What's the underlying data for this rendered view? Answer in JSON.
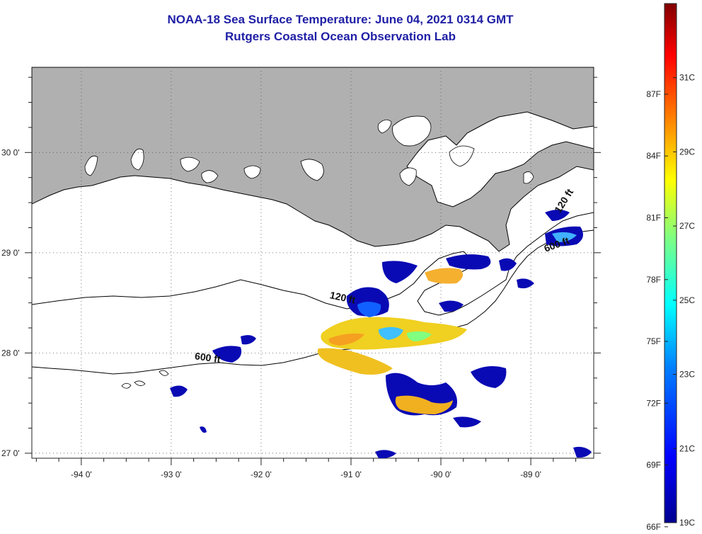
{
  "title": {
    "line1": "NOAA-18 Sea Surface Temperature:  June 04, 2021 0314 GMT",
    "line2": "Rutgers Coastal Ocean Observation Lab"
  },
  "map": {
    "lon_range": [
      -94.55,
      -88.3
    ],
    "lat_range": [
      26.95,
      30.85
    ],
    "lon_ticks": [
      {
        "value": -94,
        "label": "-94 0'"
      },
      {
        "value": -93,
        "label": "-93 0'"
      },
      {
        "value": -92,
        "label": "-92 0'"
      },
      {
        "value": -91,
        "label": "-91 0'"
      },
      {
        "value": -90,
        "label": "-90 0'"
      },
      {
        "value": -89,
        "label": "-89 0'"
      }
    ],
    "lat_ticks": [
      {
        "value": 30,
        "label": "30 0'"
      },
      {
        "value": 29,
        "label": "29 0'"
      },
      {
        "value": 28,
        "label": "28 0'"
      },
      {
        "value": 27,
        "label": "27 0'"
      }
    ],
    "land_color": "#b0b0b0",
    "contours": [
      {
        "label": "120 ft",
        "label_lon": -91.1,
        "label_lat": 28.52,
        "label_angle": 12
      },
      {
        "label": "600 ft",
        "label_lon": -92.6,
        "label_lat": 27.92,
        "label_angle": 8
      },
      {
        "label": "120 ft",
        "label_lon": -88.6,
        "label_lat": 29.5,
        "label_angle": -58
      },
      {
        "label": "600 ft",
        "label_lon": -88.7,
        "label_lat": 29.05,
        "label_angle": -20
      }
    ]
  },
  "colorbar": {
    "min_c": 19,
    "max_c": 33,
    "celsius_labels": [
      "19C",
      "21C",
      "23C",
      "25C",
      "27C",
      "29C",
      "31C"
    ],
    "fahrenheit_labels": [
      "66F",
      "69F",
      "72F",
      "75F",
      "78F",
      "81F",
      "84F",
      "87F"
    ],
    "colors": [
      "#00008f",
      "#0000ff",
      "#0080ff",
      "#00ffff",
      "#80ff80",
      "#ffff00",
      "#ff8000",
      "#ff0000",
      "#800000"
    ]
  }
}
